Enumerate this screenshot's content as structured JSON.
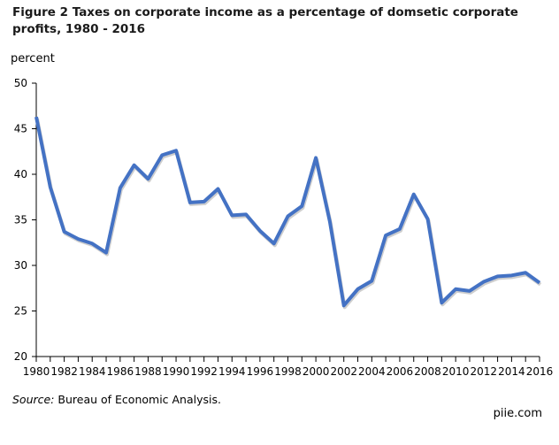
{
  "chart_data": {
    "type": "line",
    "title": "Figure 2 Taxes on corporate income as a percentage of domsetic corporate profits, 1980 - 2016",
    "ylabel": "percent",
    "xlabel": "",
    "ylim": [
      20,
      50
    ],
    "yticks": [
      20,
      25,
      30,
      35,
      40,
      45,
      50
    ],
    "xlim": [
      1980,
      2016
    ],
    "xticks": [
      1980,
      1982,
      1984,
      1986,
      1988,
      1990,
      1992,
      1994,
      1996,
      1998,
      2000,
      2002,
      2004,
      2006,
      2008,
      2010,
      2012,
      2014,
      2016
    ],
    "grid": false,
    "line_color": "#4472C4",
    "x": [
      1980,
      1981,
      1982,
      1983,
      1984,
      1985,
      1986,
      1987,
      1988,
      1989,
      1990,
      1991,
      1992,
      1993,
      1994,
      1995,
      1996,
      1997,
      1998,
      1999,
      2000,
      2001,
      2002,
      2003,
      2004,
      2005,
      2006,
      2007,
      2008,
      2009,
      2010,
      2011,
      2012,
      2013,
      2014,
      2015,
      2016
    ],
    "values": [
      46.3,
      38.6,
      33.7,
      32.9,
      32.4,
      31.4,
      38.5,
      41.0,
      39.5,
      42.1,
      42.6,
      36.9,
      37.0,
      38.4,
      35.5,
      35.6,
      33.8,
      32.4,
      35.4,
      36.5,
      41.8,
      34.8,
      25.6,
      27.4,
      28.3,
      33.3,
      34.0,
      37.8,
      35.1,
      25.9,
      27.4,
      27.2,
      28.2,
      28.8,
      28.9,
      29.2,
      28.1
    ]
  },
  "source_label": "Source:",
  "source_text": " Bureau of Economic Analysis.",
  "credit": "piie.com"
}
